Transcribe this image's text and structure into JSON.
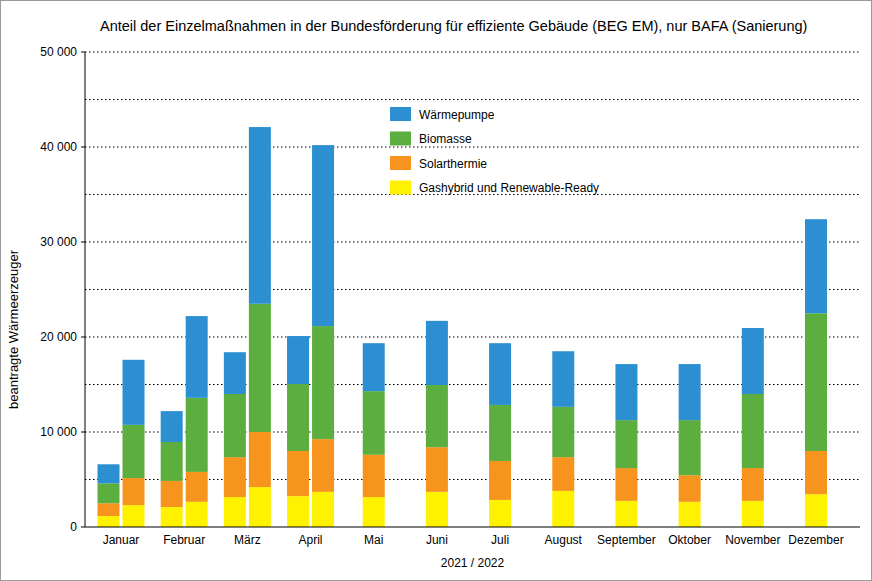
{
  "chart_data": {
    "type": "bar",
    "stacked": true,
    "grid": true,
    "legend": "top",
    "title": "Anteil der Einzelmaßnahmen in der Bundesförderung für effiziente Gebäude (BEG EM), nur BAFA (Sanierung)",
    "x_label": "2021 / 2022",
    "y_label": "beantragte Wärmeerzeuger",
    "categories": [
      "Januar",
      null,
      "Februar",
      null,
      "März",
      null,
      "April",
      null,
      "Mai",
      "Juni",
      "Juli",
      "August",
      "September",
      "Oktober",
      "November",
      "Dezember"
    ],
    "ylim": [
      0,
      50000
    ],
    "yticks": [
      0,
      {
        "value": 10000,
        "label": "10 000"
      },
      {
        "value": 20000,
        "label": "20 000"
      },
      {
        "value": 30000,
        "label": "30 000"
      },
      {
        "value": 40000,
        "label": "40 000"
      },
      {
        "value": 50000,
        "label": "50 000"
      }
    ],
    "series": [
      {
        "name": "Gashybrid und Renewable-Ready",
        "color": "#fff200",
        "values": [
          1150,
          2300,
          2100,
          2650,
          3150,
          4200,
          3250,
          3700,
          3150,
          3700,
          2850,
          3800,
          2750,
          2650,
          2750,
          3450
        ]
      },
      {
        "name": "Solarthermie",
        "color": "#f7941d",
        "values": [
          1350,
          2850,
          2750,
          3150,
          4200,
          5800,
          4750,
          5550,
          4450,
          4700,
          4100,
          3550,
          3450,
          2800,
          3450,
          4550
        ]
      },
      {
        "name": "Biomasse",
        "color": "#5cae3e",
        "values": [
          2100,
          5600,
          4100,
          7800,
          6650,
          13500,
          7050,
          11900,
          6700,
          6550,
          5900,
          5300,
          5050,
          5800,
          7800,
          14500
        ]
      },
      {
        "name": "Wärmepumpe",
        "color": "#2b8fd2",
        "values": [
          2000,
          6850,
          3250,
          8600,
          4400,
          18600,
          5050,
          19050,
          5050,
          6750,
          6500,
          5850,
          5900,
          5900,
          6950,
          9900
        ]
      }
    ]
  }
}
